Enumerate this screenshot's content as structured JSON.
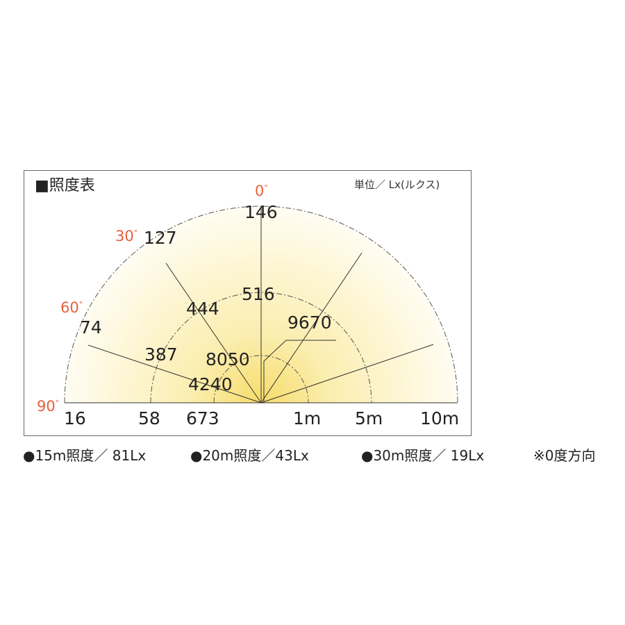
{
  "title": "■照度表",
  "unit": "単位／ Lx(ルクス)",
  "angle_color": "#e8603c",
  "angles": {
    "a0": "0",
    "a30": "30",
    "a60": "60",
    "a90": "90",
    "deg": "°"
  },
  "values": {
    "v146": "146",
    "v127": "127",
    "v74": "74",
    "v16": "16",
    "v516": "516",
    "v444": "444",
    "v387": "387",
    "v58": "58",
    "v8050": "8050",
    "v4240": "4240",
    "v673": "673",
    "v9670": "9670"
  },
  "distances": {
    "d1": "1m",
    "d5": "5m",
    "d10": "10m"
  },
  "footer": {
    "f15": "●15m照度／ 81Lx",
    "f20": "●20m照度／43Lx",
    "f30": "●30m照度／ 19Lx",
    "note": "※0度方向"
  }
}
